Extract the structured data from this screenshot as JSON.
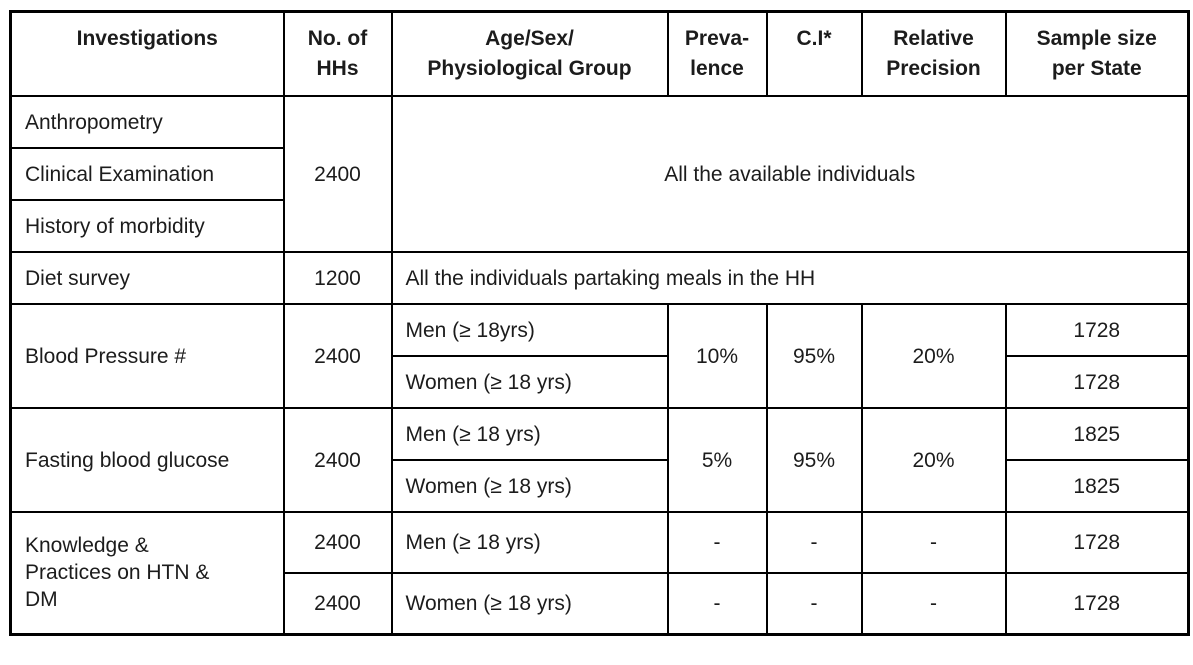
{
  "table": {
    "columns": [
      {
        "label": "Investigations"
      },
      {
        "label": "No. of\nHHs"
      },
      {
        "label": "Age/Sex/\nPhysiological Group"
      },
      {
        "label": "Preva-\nlence"
      },
      {
        "label": "C.I*"
      },
      {
        "label": "Relative\nPrecision"
      },
      {
        "label": "Sample size\nper State"
      }
    ],
    "groups": [
      {
        "investigations": [
          "Anthropometry",
          "Clinical Examination",
          "History of morbidity"
        ],
        "no_of_hhs": "2400",
        "coverage_note": "All the available individuals"
      },
      {
        "investigation": "Diet survey",
        "no_of_hhs": "1200",
        "coverage_note": "All the individuals partaking meals in the HH"
      },
      {
        "investigation": "Blood Pressure #",
        "no_of_hhs": "2400",
        "prevalence": "10%",
        "ci": "95%",
        "relative_precision": "20%",
        "subrows": [
          {
            "group": "Men (≥ 18yrs)",
            "sample_size_per_state": "1728"
          },
          {
            "group": "Women (≥ 18 yrs)",
            "sample_size_per_state": "1728"
          }
        ]
      },
      {
        "investigation": "Fasting blood glucose",
        "no_of_hhs": "2400",
        "prevalence": "5%",
        "ci": "95%",
        "relative_precision": "20%",
        "subrows": [
          {
            "group": "Men (≥ 18 yrs)",
            "sample_size_per_state": "1825"
          },
          {
            "group": "Women (≥ 18 yrs)",
            "sample_size_per_state": "1825"
          }
        ]
      },
      {
        "investigation": "Knowledge &\nPractices on HTN &\nDM",
        "subrows": [
          {
            "no_of_hhs": "2400",
            "group": "Men (≥ 18 yrs)",
            "prevalence": "-",
            "ci": "-",
            "relative_precision": "-",
            "sample_size_per_state": "1728"
          },
          {
            "no_of_hhs": "2400",
            "group": "Women (≥ 18 yrs)",
            "prevalence": "-",
            "ci": "-",
            "relative_precision": "-",
            "sample_size_per_state": "1728"
          }
        ]
      }
    ]
  },
  "colors": {
    "border": "#000000",
    "text": "#1c1c1c",
    "background": "#ffffff"
  }
}
